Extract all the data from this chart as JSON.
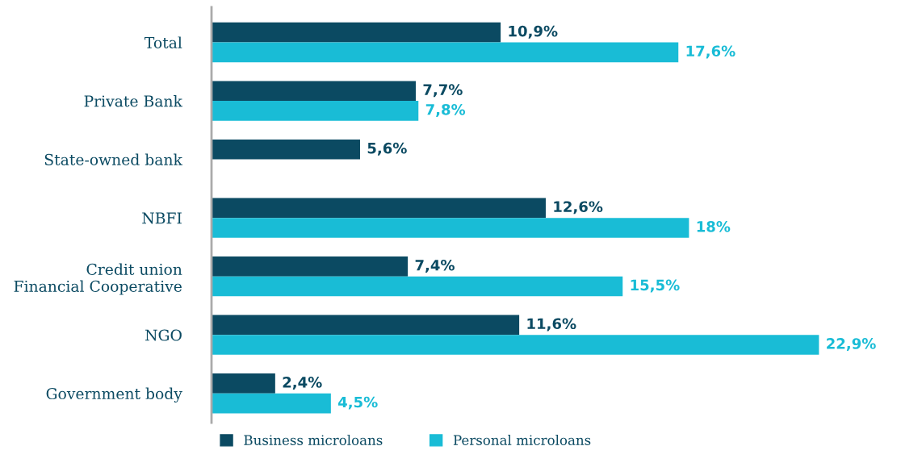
{
  "chart_data": {
    "type": "bar",
    "orientation": "horizontal",
    "categories": [
      "Total",
      "Private Bank",
      "State-owned bank",
      "NBFI",
      "Credit union\nFinancial Cooperative",
      "NGO",
      "Government body"
    ],
    "tick_labels": "y",
    "legend": "bottom",
    "grid": false,
    "series": [
      {
        "name": "Business microloans",
        "color": "#0b4a62",
        "values": [
          10.9,
          7.7,
          5.6,
          12.6,
          7.4,
          11.6,
          2.4
        ],
        "value_labels": [
          "10,9%",
          "7,7%",
          "5,6%",
          "12,6%",
          "7,4%",
          "11,6%",
          "2,4%"
        ]
      },
      {
        "name": "Personal microloans",
        "color": "#19bcd6",
        "values": [
          17.6,
          7.8,
          null,
          18,
          15.5,
          22.9,
          4.5
        ],
        "value_labels": [
          "17,6%",
          "7,8%",
          null,
          "18%",
          "15,5%",
          "22,9%",
          "4,5%"
        ]
      }
    ]
  }
}
